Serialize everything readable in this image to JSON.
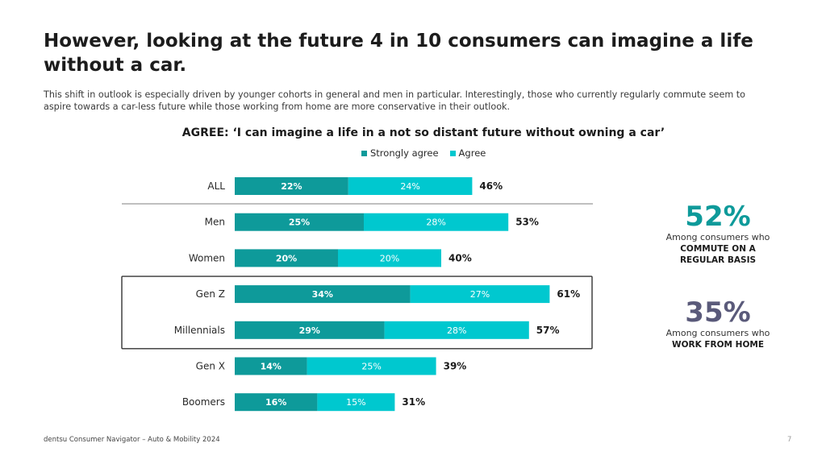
{
  "header": {
    "title": "However, looking at the future 4 in 10 consumers can imagine a life without a car.",
    "subtitle": "This shift in outlook is especially driven by younger cohorts in general and men in particular. Interestingly, those who currently regularly commute seem to aspire towards a car-less future while those working from home are more conservative in their outlook."
  },
  "chart_data": {
    "type": "bar",
    "orientation": "horizontal",
    "stacked": true,
    "title": "AGREE: ‘I can imagine a life in a not so distant future without owning a car’",
    "categories": [
      "ALL",
      "Men",
      "Women",
      "Gen Z",
      "Millennials",
      "Gen X",
      "Boomers"
    ],
    "series": [
      {
        "name": "Strongly agree",
        "color": "#0e9a9a",
        "values": [
          22,
          25,
          20,
          34,
          29,
          14,
          16
        ]
      },
      {
        "name": "Agree",
        "color": "#00c8cf",
        "values": [
          24,
          28,
          20,
          27,
          28,
          25,
          15
        ]
      }
    ],
    "totals": [
      46,
      53,
      40,
      61,
      57,
      39,
      31
    ],
    "value_suffix": "%",
    "legend_position": "top",
    "highlighted_groups": [
      "Gen Z",
      "Millennials"
    ],
    "xlim": [
      0,
      70
    ]
  },
  "callouts": [
    {
      "value": "52%",
      "line1": "Among consumers who",
      "line2": "COMMUTE ON A",
      "line3": "REGULAR BASIS",
      "color": "#0e9a9a"
    },
    {
      "value": "35%",
      "line1": "Among consumers who",
      "line2": "WORK FROM HOME",
      "line3": "",
      "color": "#5a5a7a"
    }
  ],
  "footer": {
    "source": "dentsu Consumer Navigator – Auto & Mobility 2024",
    "page_number": "7"
  }
}
